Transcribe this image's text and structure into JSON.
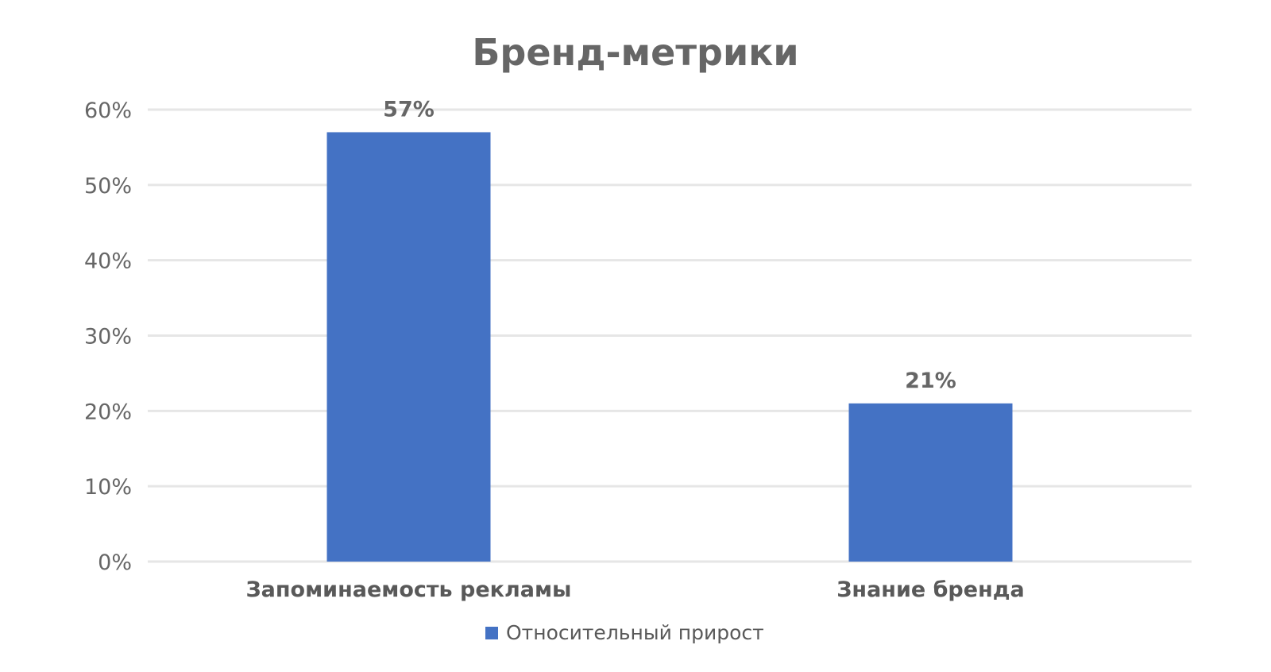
{
  "chart_data": {
    "type": "bar",
    "title": "Бренд-метрики",
    "categories": [
      "Запоминаемость рекламы",
      "Знание бренда"
    ],
    "series": [
      {
        "name": "Относительный прирост",
        "values": [
          57,
          21
        ],
        "color": "#4472C4"
      }
    ],
    "data_labels": [
      "57%",
      "21%"
    ],
    "ylim": [
      0,
      60
    ],
    "yticks": [
      0,
      10,
      20,
      30,
      40,
      50,
      60
    ],
    "ytick_labels": [
      "0%",
      "10%",
      "20%",
      "30%",
      "40%",
      "50%",
      "60%"
    ],
    "grid": true,
    "legend_position": "bottom"
  }
}
